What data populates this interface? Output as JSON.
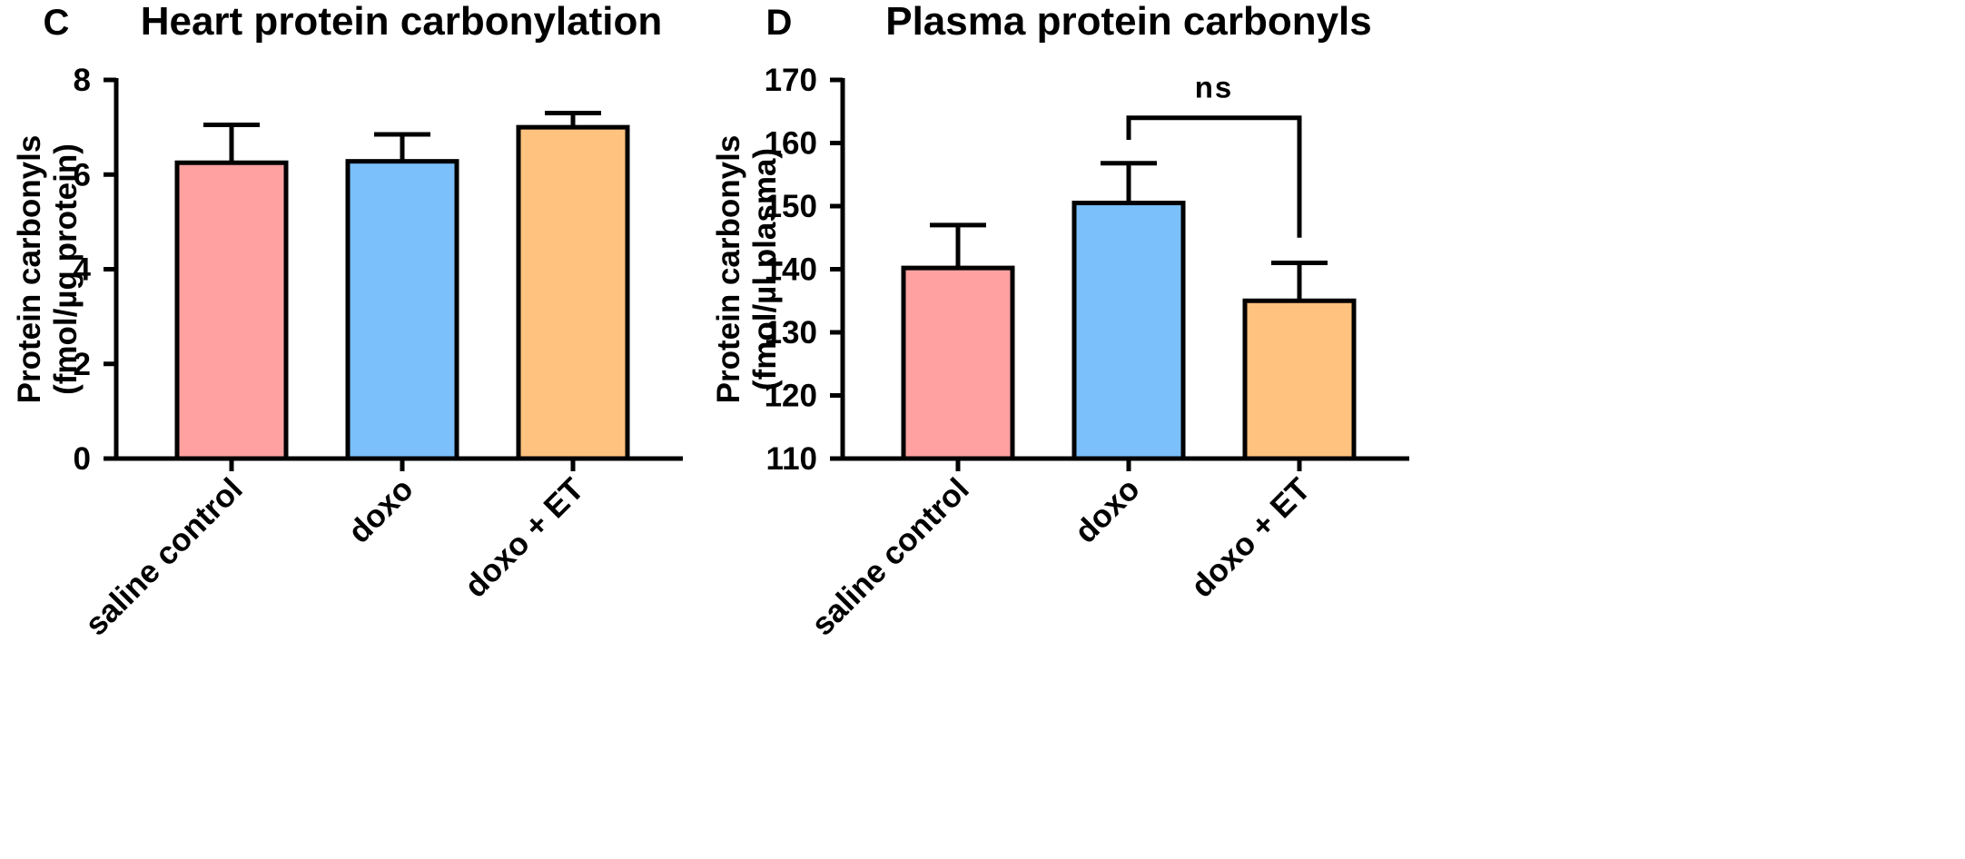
{
  "chart_data": [
    {
      "panel": "C",
      "type": "bar",
      "title": "Heart protein carbonylation",
      "ylabel_lines": [
        "Protein carbonyls",
        "(fmol/µg protein)"
      ],
      "categories": [
        "saline control",
        "doxo",
        "doxo + ET"
      ],
      "values": [
        6.25,
        6.28,
        7.0
      ],
      "errors": [
        0.8,
        0.57,
        0.3
      ],
      "colors": [
        "#FFA1A1",
        "#7BBFFB",
        "#FFC27F"
      ],
      "ylim": [
        0,
        8
      ],
      "yticks": [
        0,
        2,
        4,
        6,
        8
      ],
      "ytick_labels": [
        "0",
        "2",
        "4",
        "6",
        "8"
      ],
      "grid": false
    },
    {
      "panel": "D",
      "type": "bar",
      "title": "Plasma protein carbonyls",
      "ylabel_lines": [
        "Protein carbonyls",
        "(fmol/µl plasma)"
      ],
      "categories": [
        "saline control",
        "doxo",
        "doxo + ET"
      ],
      "values": [
        140.2,
        150.5,
        135.0
      ],
      "errors": [
        6.8,
        6.3,
        6.0
      ],
      "colors": [
        "#FFA1A1",
        "#7BBFFB",
        "#FFC27F"
      ],
      "ylim": [
        110,
        170
      ],
      "yticks": [
        110,
        120,
        130,
        140,
        150,
        160,
        170
      ],
      "ytick_labels": [
        "110",
        "120",
        "130",
        "140",
        "150",
        "160",
        "170"
      ],
      "grid": false,
      "annotations": [
        {
          "from": 1,
          "to": 2,
          "text": "ns",
          "y": 164
        }
      ]
    }
  ]
}
